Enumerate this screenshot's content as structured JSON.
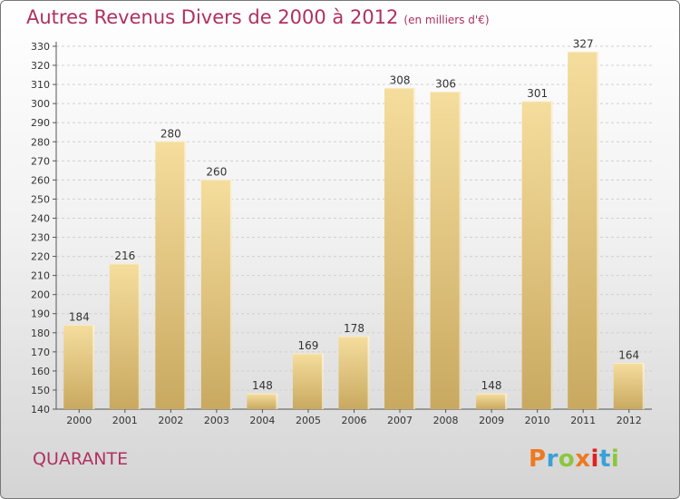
{
  "title": "Autres Revenus Divers de 2000 à 2012",
  "unit_note": "(en milliers d'€)",
  "commune": "QUARANTE",
  "logo": {
    "text": "Proxiti",
    "colors": [
      "#f07820",
      "#3aa0d8",
      "#8cc63f",
      "#f07820",
      "#e02020",
      "#3aa0d8",
      "#8cc63f"
    ]
  },
  "chart_data": {
    "type": "bar",
    "categories": [
      "2000",
      "2001",
      "2002",
      "2003",
      "2004",
      "2005",
      "2006",
      "2007",
      "2008",
      "2009",
      "2010",
      "2011",
      "2012"
    ],
    "values": [
      184,
      216,
      280,
      260,
      148,
      169,
      178,
      308,
      306,
      148,
      301,
      327,
      164
    ],
    "ylim": [
      140,
      330
    ],
    "yticks": [
      140,
      150,
      160,
      170,
      180,
      190,
      200,
      210,
      220,
      230,
      240,
      250,
      260,
      270,
      280,
      290,
      300,
      310,
      320,
      330
    ],
    "grid": true,
    "bar_color": "#e6c883"
  }
}
